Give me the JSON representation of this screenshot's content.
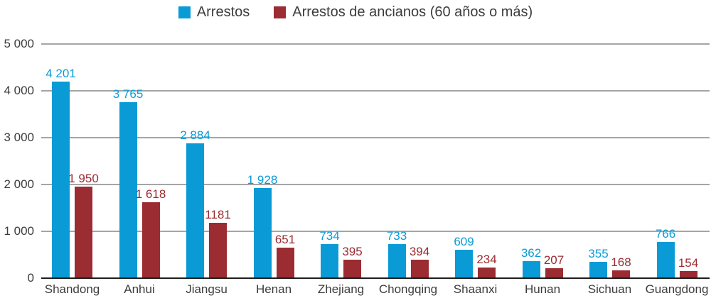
{
  "page": {
    "background": "#ffffff"
  },
  "legend": {
    "items": [
      {
        "label": "Arrestos",
        "color": "#0a9bd7"
      },
      {
        "label": "Arrestos de ancianos (60 años o más)",
        "color": "#9b2c32"
      }
    ]
  },
  "chart_data": {
    "type": "bar",
    "title": "",
    "xlabel": "",
    "ylabel": "",
    "categories": [
      "Shandong",
      "Anhui",
      "Jiangsu",
      "Henan",
      "Zhejiang",
      "Chongqing",
      "Shaanxi",
      "Hunan",
      "Sichuan",
      "Guangdong"
    ],
    "series": [
      {
        "name": "Arrestos",
        "color": "#0a9bd7",
        "values": [
          4201,
          3765,
          2884,
          1928,
          734,
          733,
          609,
          362,
          355,
          766
        ],
        "labels": [
          "4 201",
          "3 765",
          "2 884",
          "1 928",
          "734",
          "733",
          "609",
          "362",
          "355",
          "766"
        ]
      },
      {
        "name": "Arrestos de ancianos (60 años o más)",
        "color": "#9b2c32",
        "values": [
          1950,
          1618,
          1181,
          651,
          395,
          394,
          234,
          207,
          168,
          154
        ],
        "labels": [
          "1 950",
          "1 618",
          "1181",
          "651",
          "395",
          "394",
          "234",
          "207",
          "168",
          "154"
        ]
      }
    ],
    "ylim": [
      0,
      5000
    ],
    "yticks": [
      {
        "value": 0,
        "label": "0"
      },
      {
        "value": 1000,
        "label": "1 000"
      },
      {
        "value": 2000,
        "label": "2 000"
      },
      {
        "value": 3000,
        "label": "3 000"
      },
      {
        "value": 4000,
        "label": "4 000"
      },
      {
        "value": 5000,
        "label": "5 000"
      }
    ],
    "grid": true,
    "legend_position": "top",
    "colors": {
      "grid_line": "#a5a5a5",
      "axis_line": "#1d1d1b",
      "text": "#3c3c3b"
    }
  }
}
